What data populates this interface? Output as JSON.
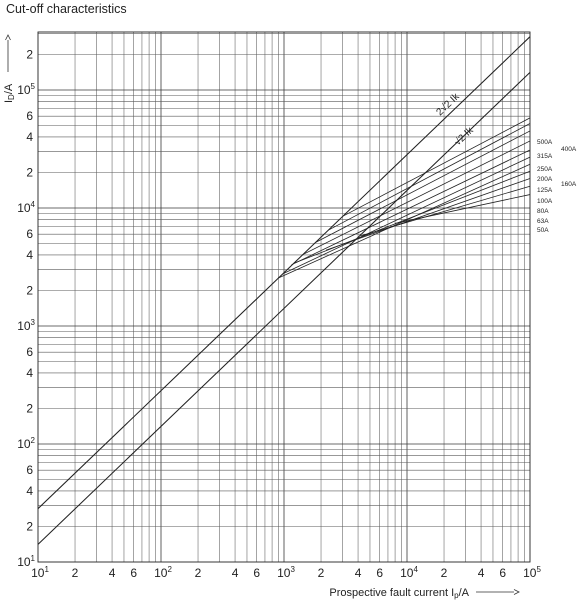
{
  "chart_data": {
    "type": "line",
    "title": "Cut-off characteristics",
    "xlabel": "Prospective fault current  Ip/A",
    "xlabel_main": "Prospective fault current",
    "xlabel_sym": "I",
    "xlabel_sub": "p",
    "xlabel_unit": "/A",
    "ylabel_sym": "I",
    "ylabel_sub": "D",
    "ylabel_unit": "/A",
    "x_scale": "log",
    "y_scale": "log",
    "xlim": [
      10,
      100000
    ],
    "ylim": [
      10,
      300000
    ],
    "grid": true,
    "x_ticks": [
      {
        "value": 10,
        "mant": "10",
        "exp": "1"
      },
      {
        "value": 20,
        "mant": "2",
        "exp": ""
      },
      {
        "value": 40,
        "mant": "4",
        "exp": ""
      },
      {
        "value": 60,
        "mant": "6",
        "exp": ""
      },
      {
        "value": 100,
        "mant": "10",
        "exp": "2"
      },
      {
        "value": 200,
        "mant": "2",
        "exp": ""
      },
      {
        "value": 400,
        "mant": "4",
        "exp": ""
      },
      {
        "value": 600,
        "mant": "6",
        "exp": ""
      },
      {
        "value": 1000,
        "mant": "10",
        "exp": "3"
      },
      {
        "value": 2000,
        "mant": "2",
        "exp": ""
      },
      {
        "value": 4000,
        "mant": "4",
        "exp": ""
      },
      {
        "value": 6000,
        "mant": "6",
        "exp": ""
      },
      {
        "value": 10000,
        "mant": "10",
        "exp": "4"
      },
      {
        "value": 20000,
        "mant": "2",
        "exp": ""
      },
      {
        "value": 40000,
        "mant": "4",
        "exp": ""
      },
      {
        "value": 60000,
        "mant": "6",
        "exp": ""
      },
      {
        "value": 100000,
        "mant": "10",
        "exp": "5"
      }
    ],
    "y_ticks": [
      {
        "value": 10,
        "mant": "10",
        "exp": "1"
      },
      {
        "value": 20,
        "mant": "2",
        "exp": ""
      },
      {
        "value": 40,
        "mant": "4",
        "exp": ""
      },
      {
        "value": 60,
        "mant": "6",
        "exp": ""
      },
      {
        "value": 100,
        "mant": "10",
        "exp": "2"
      },
      {
        "value": 200,
        "mant": "2",
        "exp": ""
      },
      {
        "value": 400,
        "mant": "4",
        "exp": ""
      },
      {
        "value": 600,
        "mant": "6",
        "exp": ""
      },
      {
        "value": 1000,
        "mant": "10",
        "exp": "3"
      },
      {
        "value": 2000,
        "mant": "2",
        "exp": ""
      },
      {
        "value": 4000,
        "mant": "4",
        "exp": ""
      },
      {
        "value": 6000,
        "mant": "6",
        "exp": ""
      },
      {
        "value": 10000,
        "mant": "10",
        "exp": "4"
      },
      {
        "value": 20000,
        "mant": "2",
        "exp": ""
      },
      {
        "value": 40000,
        "mant": "4",
        "exp": ""
      },
      {
        "value": 60000,
        "mant": "6",
        "exp": ""
      },
      {
        "value": 100000,
        "mant": "10",
        "exp": "5"
      },
      {
        "value": 200000,
        "mant": "2",
        "exp": ""
      }
    ],
    "reference_lines": [
      {
        "label": "2√2 Ik",
        "x": [
          10,
          100000
        ],
        "y": [
          28.3,
          283000
        ]
      },
      {
        "label": "√2 Ik",
        "x": [
          10,
          100000
        ],
        "y": [
          14.1,
          141000
        ]
      }
    ],
    "fuse_curves": [
      {
        "name": "500A",
        "x": [
          3000,
          100000
        ],
        "y": [
          8500,
          58000
        ]
      },
      {
        "name": "400A",
        "x": [
          2300,
          100000
        ],
        "y": [
          6500,
          52000
        ]
      },
      {
        "name": "315A",
        "x": [
          1800,
          100000
        ],
        "y": [
          5100,
          45000
        ]
      },
      {
        "name": "250A",
        "x": [
          1400,
          100000
        ],
        "y": [
          4000,
          37000
        ]
      },
      {
        "name": "200A",
        "x": [
          1150,
          100000
        ],
        "y": [
          3300,
          31000
        ]
      },
      {
        "name": "160A",
        "x": [
          1000,
          100000
        ],
        "y": [
          2800,
          27000
        ]
      },
      {
        "name": "125A",
        "x": [
          900,
          100000
        ],
        "y": [
          2550,
          23500
        ]
      },
      {
        "name": "100A",
        "x": [
          1200,
          100000
        ],
        "y": [
          3400,
          20500
        ]
      },
      {
        "name": "80A",
        "x": [
          2200,
          100000
        ],
        "y": [
          4400,
          17800
        ]
      },
      {
        "name": "63A",
        "x": [
          4200,
          100000
        ],
        "y": [
          5800,
          15300
        ]
      },
      {
        "name": "50A",
        "x": [
          8000,
          100000
        ],
        "y": [
          7400,
          13000
        ]
      }
    ],
    "rating_labels_left": [
      "500A",
      "315A",
      "250A",
      "200A",
      "125A",
      "100A",
      "80A",
      "63A",
      "50A"
    ],
    "rating_labels_right": [
      "400A",
      "160A"
    ]
  }
}
